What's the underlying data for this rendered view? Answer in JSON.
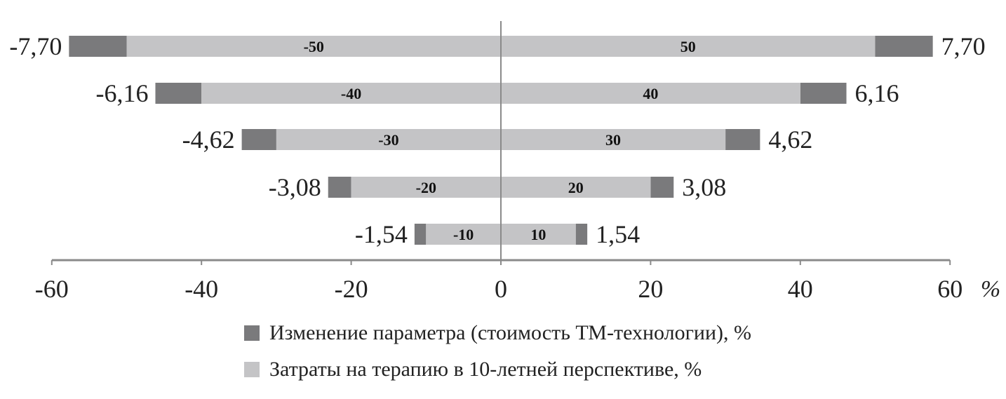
{
  "chart_data": {
    "type": "bar",
    "orientation": "horizontal",
    "stacked": true,
    "xlim": [
      -60,
      60
    ],
    "xticks": [
      "-60",
      "-40",
      "-20",
      "0",
      "20",
      "40",
      "60"
    ],
    "x_unit_label": "%",
    "legend_position": "bottom",
    "rows": [
      {
        "left_label": "-7,70",
        "right_label": "7,70",
        "cost_change": 7.7,
        "therapy_costs": 50,
        "left_bar_label": "-50",
        "right_bar_label": "50"
      },
      {
        "left_label": "-6,16",
        "right_label": "6,16",
        "cost_change": 6.16,
        "therapy_costs": 40,
        "left_bar_label": "-40",
        "right_bar_label": "40"
      },
      {
        "left_label": "-4,62",
        "right_label": "4,62",
        "cost_change": 4.62,
        "therapy_costs": 30,
        "left_bar_label": "-30",
        "right_bar_label": "30"
      },
      {
        "left_label": "-3,08",
        "right_label": "3,08",
        "cost_change": 3.08,
        "therapy_costs": 20,
        "left_bar_label": "-20",
        "right_bar_label": "20"
      },
      {
        "left_label": "-1,54",
        "right_label": "1,54",
        "cost_change": 1.54,
        "therapy_costs": 10,
        "left_bar_label": "-10",
        "right_bar_label": "10"
      }
    ],
    "series": [
      {
        "name": "Изменение параметра (стоимость ТМ-технологии), %",
        "color": "#7a7a7c"
      },
      {
        "name": "Затраты на терапию в 10-летней перспективе, %",
        "color": "#c4c4c6"
      }
    ]
  }
}
